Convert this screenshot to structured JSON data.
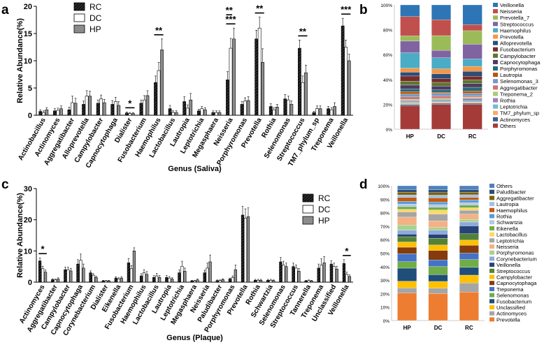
{
  "figure": {
    "panels": [
      {
        "letter": "a"
      },
      {
        "letter": "b"
      },
      {
        "letter": "c"
      },
      {
        "letter": "d"
      }
    ]
  },
  "chart_data": [
    {
      "type": "bar",
      "panel": "a",
      "ylabel": "Relative Abundance(%)",
      "xlabel": "Genus (Saliva)",
      "ylim": [
        0,
        20
      ],
      "yticks": [
        "0",
        "5",
        "10",
        "15",
        "20"
      ],
      "categories": [
        "Actinobacillus",
        "Actinomyces",
        "Aggregatibacter",
        "Alloprevotella",
        "Campylobacter",
        "Capnocytophaga",
        "Dialister",
        "Fusobacterium",
        "Haemophilus",
        "Lactobacillus",
        "Lautropia",
        "Leptotrichia",
        "Megasphaera",
        "Neisseria",
        "Porphyromonas",
        "Prevotella",
        "Rothia",
        "Selenomonas",
        "Streptococcus",
        "TM7_phylum_sp",
        "Treponema",
        "Veillonella"
      ],
      "series": [
        {
          "name": "RC",
          "values": [
            0.7,
            0.8,
            1.0,
            2.0,
            2.2,
            2.0,
            0.4,
            2.2,
            6.0,
            1.2,
            2.5,
            0.8,
            0.5,
            6.5,
            2.0,
            14.0,
            1.6,
            3.0,
            12.3,
            0.5,
            1.2,
            16.4
          ],
          "errors": [
            0.3,
            0.4,
            0.5,
            0.6,
            0.6,
            0.7,
            0.2,
            0.6,
            1.2,
            0.6,
            0.9,
            0.3,
            0.3,
            1.5,
            0.5,
            1.6,
            0.5,
            0.8,
            1.5,
            0.2,
            0.4,
            1.4
          ]
        },
        {
          "name": "DC",
          "values": [
            0.5,
            0.9,
            2.3,
            3.5,
            3.0,
            2.5,
            0.3,
            2.8,
            8.2,
            0.5,
            1.3,
            1.2,
            0.5,
            12.3,
            2.6,
            16.0,
            1.0,
            2.8,
            6.0,
            1.2,
            1.0,
            12.5
          ],
          "errors": [
            0.3,
            0.4,
            1.2,
            1.0,
            0.7,
            0.8,
            0.2,
            0.8,
            1.5,
            0.3,
            0.6,
            0.4,
            0.3,
            1.8,
            0.6,
            2.0,
            0.4,
            0.7,
            1.2,
            0.5,
            0.4,
            1.3
          ]
        },
        {
          "name": "HP",
          "values": [
            1.0,
            1.2,
            2.2,
            3.5,
            2.3,
            1.8,
            0.3,
            3.6,
            12.0,
            0.5,
            2.8,
            1.0,
            0.5,
            14.0,
            2.7,
            9.7,
            1.5,
            2.0,
            7.8,
            1.2,
            1.6,
            10.0
          ],
          "errors": [
            0.4,
            0.5,
            0.9,
            0.9,
            0.6,
            0.7,
            0.2,
            0.9,
            2.0,
            0.3,
            1.2,
            0.4,
            0.3,
            2.0,
            0.7,
            2.5,
            0.5,
            0.6,
            1.4,
            0.5,
            0.7,
            1.2
          ]
        }
      ],
      "significance": [
        {
          "category": "Dialister",
          "pair": "RC-HP",
          "label": "*"
        },
        {
          "category": "Haemophilus",
          "pair": "RC-HP",
          "label": "**"
        },
        {
          "category": "Neisseria",
          "pair": "RC-HP",
          "label": "***"
        },
        {
          "category": "Neisseria",
          "pair": "RC-DC",
          "label": "**"
        },
        {
          "category": "Prevotella",
          "pair": "RC-HP",
          "label": "**"
        },
        {
          "category": "Streptococcus",
          "pair": "RC-HP",
          "label": "**"
        },
        {
          "category": "Veillonella",
          "pair": "RC-HP",
          "label": "***"
        }
      ],
      "legend": [
        {
          "name": "RC",
          "color": "#1a1a1a",
          "pattern": "hatched"
        },
        {
          "name": "DC",
          "color": "#ffffff"
        },
        {
          "name": "HP",
          "color": "#8c8c8c"
        }
      ]
    },
    {
      "type": "stacked-bar",
      "panel": "b",
      "categories": [
        "HP",
        "DC",
        "RC"
      ],
      "yticks": [
        "0%",
        "20%",
        "40%",
        "60%",
        "80%",
        "100%"
      ],
      "legend": [
        "Veillonella",
        "Neisseria",
        "Prevotella_7",
        "Streptococcus",
        "Haemophilus",
        "Prevotella",
        "Alloprevotella",
        "Fusobacterium",
        "Campylobacter",
        "Capnocytophaga",
        "Porphyromonas",
        "Lautropia",
        "Selenomonas_3",
        "Aggregatibacter",
        "Treponema_2",
        "Rothia",
        "Leptotrichia",
        "TM7_phylum_sp",
        "Actinomyces",
        "Others"
      ],
      "colors": [
        "#2e75b6",
        "#c0504d",
        "#9bbb59",
        "#8064a2",
        "#4bacc6",
        "#f79646",
        "#2c4d75",
        "#772c2a",
        "#5f7530",
        "#4d3b62",
        "#276a7c",
        "#b65708",
        "#729aca",
        "#cd7371",
        "#afc97a",
        "#9983b5",
        "#6fbdd1",
        "#f9ab6b",
        "#3a5f8c",
        "#a43b38"
      ],
      "series": [
        {
          "name": "Veillonella",
          "values": [
            9,
            12,
            16
          ]
        },
        {
          "name": "Neisseria",
          "values": [
            15,
            13,
            5
          ]
        },
        {
          "name": "Prevotella_7",
          "values": [
            4,
            12,
            11
          ]
        },
        {
          "name": "Streptococcus",
          "values": [
            9,
            6,
            12
          ]
        },
        {
          "name": "Haemophilus",
          "values": [
            12,
            9,
            6
          ]
        },
        {
          "name": "Prevotella",
          "values": [
            3,
            4,
            4
          ]
        },
        {
          "name": "Alloprevotella",
          "values": [
            3,
            4,
            4
          ]
        },
        {
          "name": "Fusobacterium",
          "values": [
            4,
            3,
            3
          ]
        },
        {
          "name": "Campylobacter",
          "values": [
            3,
            3,
            3
          ]
        },
        {
          "name": "Capnocytophaga",
          "values": [
            3,
            3,
            3
          ]
        },
        {
          "name": "Porphyromonas",
          "values": [
            2,
            2,
            3
          ]
        },
        {
          "name": "Lautropia",
          "values": [
            2,
            1,
            2
          ]
        },
        {
          "name": "Selenomonas_3",
          "values": [
            2,
            2,
            2
          ]
        },
        {
          "name": "Aggregatibacter",
          "values": [
            2,
            2,
            1
          ]
        },
        {
          "name": "Treponema_2",
          "values": [
            1,
            1,
            1
          ]
        },
        {
          "name": "Rothia",
          "values": [
            1,
            1,
            2
          ]
        },
        {
          "name": "Leptotrichia",
          "values": [
            1,
            1,
            1
          ]
        },
        {
          "name": "TM7_phylum_sp",
          "values": [
            1,
            1,
            1
          ]
        },
        {
          "name": "Actinomyces",
          "values": [
            1,
            1,
            1
          ]
        },
        {
          "name": "Others",
          "values": [
            18,
            20,
            20
          ]
        }
      ]
    },
    {
      "type": "bar",
      "panel": "c",
      "ylabel": "Relative Abundance(%)",
      "xlabel": "Genus (Plaque)",
      "ylim": [
        0,
        30
      ],
      "yticks": [
        "0",
        "10",
        "20",
        "30"
      ],
      "categories": [
        "Actinomyces",
        "Aggregatibacter",
        "Campylobacter",
        "Capnocytophaga",
        "Corynebacterium",
        "Dialister",
        "Eikenella",
        "Fusobacterium",
        "Haemophilus",
        "Lactobacillus",
        "Lautropia",
        "Leptotrichia",
        "Megasphaera",
        "Neisseria",
        "Paludibacter",
        "Porphyromonas",
        "Prevotella",
        "Rothia",
        "Schwartzia",
        "Selenomonas",
        "Streptococcus",
        "Tannerella",
        "Treponema",
        "Unclassified",
        "Veillonella"
      ],
      "series": [
        {
          "name": "RC",
          "values": [
            6.8,
            0.8,
            4.0,
            5.8,
            3.0,
            0.4,
            1.3,
            6.2,
            2.0,
            1.5,
            1.5,
            3.0,
            0.4,
            3.0,
            0.5,
            1.0,
            21.5,
            0.6,
            0.6,
            6.5,
            5.0,
            0.4,
            4.5,
            5.8,
            6.0
          ],
          "errors": [
            1.0,
            0.3,
            0.8,
            1.4,
            0.6,
            0.2,
            0.4,
            1.4,
            0.7,
            0.6,
            0.6,
            0.9,
            0.2,
            0.8,
            0.2,
            0.3,
            2.8,
            0.3,
            0.3,
            1.4,
            1.1,
            0.2,
            1.3,
            1.1,
            1.2
          ]
        },
        {
          "name": "DC",
          "values": [
            4.3,
            0.7,
            4.0,
            7.0,
            2.2,
            0.4,
            1.0,
            4.3,
            3.0,
            2.0,
            1.3,
            5.1,
            0.4,
            4.5,
            0.5,
            1.5,
            20.5,
            0.6,
            0.6,
            5.5,
            4.5,
            0.5,
            5.5,
            5.0,
            2.5
          ],
          "errors": [
            0.8,
            0.3,
            0.8,
            2.0,
            0.5,
            0.2,
            0.4,
            1.0,
            1.0,
            0.8,
            0.5,
            1.6,
            0.2,
            1.6,
            0.2,
            0.5,
            3.0,
            0.3,
            0.3,
            1.2,
            1.0,
            0.2,
            2.0,
            1.1,
            0.7
          ]
        },
        {
          "name": "HP",
          "values": [
            3.2,
            1.0,
            3.6,
            4.5,
            1.5,
            0.4,
            1.3,
            10.0,
            2.5,
            1.5,
            1.0,
            3.5,
            0.7,
            6.5,
            0.8,
            4.0,
            21.0,
            0.6,
            0.5,
            5.0,
            3.5,
            0.4,
            6.2,
            4.2,
            1.8
          ],
          "errors": [
            0.7,
            0.4,
            0.8,
            1.3,
            0.4,
            0.2,
            0.4,
            1.0,
            0.9,
            0.6,
            0.4,
            1.0,
            0.3,
            2.2,
            0.3,
            1.5,
            2.8,
            0.3,
            0.2,
            1.1,
            0.9,
            0.2,
            2.0,
            0.9,
            0.5
          ]
        }
      ],
      "significance": [
        {
          "category": "Actinomyces",
          "pair": "RC-HP",
          "label": "*"
        },
        {
          "category": "Veillonella",
          "pair": "RC-HP",
          "label": "*"
        }
      ],
      "legend": [
        {
          "name": "RC",
          "color": "#1a1a1a",
          "pattern": "hatched"
        },
        {
          "name": "DC",
          "color": "#ffffff"
        },
        {
          "name": "HP",
          "color": "#8c8c8c"
        }
      ]
    },
    {
      "type": "stacked-bar",
      "panel": "d",
      "categories": [
        "HP",
        "DC",
        "RC"
      ],
      "yticks": [
        "0%",
        "10%",
        "20%",
        "30%",
        "40%",
        "50%",
        "60%",
        "70%",
        "80%",
        "90%",
        "100%"
      ],
      "legend": [
        "Others",
        "Paludibacter",
        "Aggregatibacter",
        "Lautropia",
        "Haemophilus",
        "Rothia",
        "Schwartzia",
        "Eikenella",
        "Lactobacillus",
        "Leptotrichia",
        "Neisseria",
        "Porphyromonas",
        "Corynebacterium",
        "Veillonella",
        "Streptococcus",
        "Campylobacter",
        "Capnocytophaga",
        "Treponema",
        "Selenomonas",
        "Fusobacterium",
        "Unclassified",
        "Actinomyces",
        "Prevotella"
      ],
      "colors": [
        "#4f81bd",
        "#2c4d75",
        "#7f6000",
        "#9dc3e6",
        "#c55a11",
        "#5b9bd5",
        "#b4c7e7",
        "#70ad47",
        "#ffd966",
        "#a5a5a5",
        "#f4b183",
        "#a9d18e",
        "#8faadc",
        "#264478",
        "#548235",
        "#ffc000",
        "#843c0c",
        "#4472c4",
        "#70ad47",
        "#1f4e79",
        "#ffc000",
        "#a5a5a5",
        "#ed7d31"
      ],
      "series": [
        {
          "name": "Others",
          "values": [
            3,
            3,
            3
          ]
        },
        {
          "name": "Paludibacter",
          "values": [
            2,
            2,
            2
          ]
        },
        {
          "name": "Aggregatibacter",
          "values": [
            2,
            2,
            2
          ]
        },
        {
          "name": "Lautropia",
          "values": [
            2,
            2,
            2
          ]
        },
        {
          "name": "Haemophilus",
          "values": [
            3,
            3,
            2
          ]
        },
        {
          "name": "Rothia",
          "values": [
            2,
            2,
            2
          ]
        },
        {
          "name": "Schwartzia",
          "values": [
            2,
            2,
            2
          ]
        },
        {
          "name": "Eikenella",
          "values": [
            2,
            2,
            2
          ]
        },
        {
          "name": "Lactobacillus",
          "values": [
            2,
            3,
            2
          ]
        },
        {
          "name": "Leptotrichia",
          "values": [
            4,
            5,
            3
          ]
        },
        {
          "name": "Neisseria",
          "values": [
            6,
            5,
            4
          ]
        },
        {
          "name": "Porphyromonas",
          "values": [
            4,
            2,
            2
          ]
        },
        {
          "name": "Corynebacterium",
          "values": [
            3,
            3,
            3
          ]
        },
        {
          "name": "Veillonella",
          "values": [
            2,
            3,
            6
          ]
        },
        {
          "name": "Streptococcus",
          "values": [
            4,
            5,
            5
          ]
        },
        {
          "name": "Campylobacter",
          "values": [
            4,
            4,
            4
          ]
        },
        {
          "name": "Capnocytophaga",
          "values": [
            5,
            7,
            6
          ]
        },
        {
          "name": "Treponema",
          "values": [
            6,
            5,
            5
          ]
        },
        {
          "name": "Selenomonas",
          "values": [
            5,
            6,
            6
          ]
        },
        {
          "name": "Fusobacterium",
          "values": [
            10,
            5,
            6
          ]
        },
        {
          "name": "Unclassified",
          "values": [
            5,
            5,
            6
          ]
        },
        {
          "name": "Actinomyces",
          "values": [
            4,
            4,
            7
          ]
        },
        {
          "name": "Prevotella",
          "values": [
            21,
            20,
            22
          ]
        }
      ]
    }
  ]
}
